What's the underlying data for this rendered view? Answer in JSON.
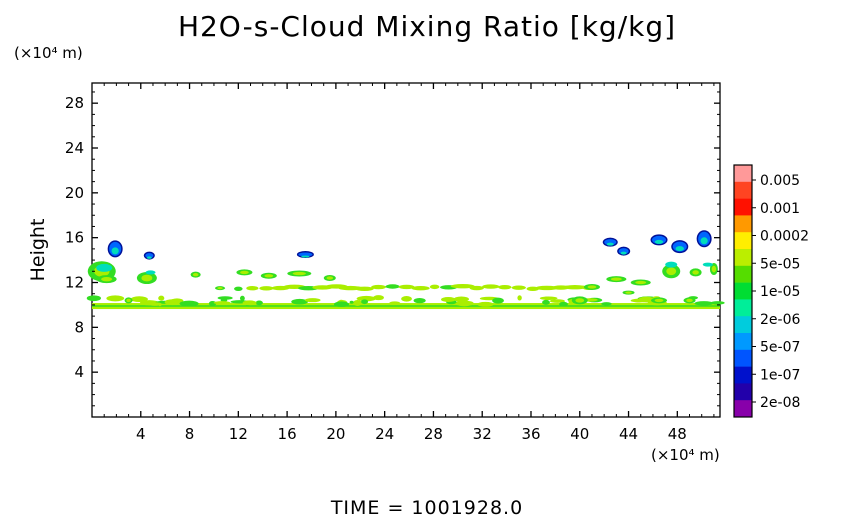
{
  "title": "H2O-s-Cloud Mixing Ratio [kg/kg]",
  "y_unit": "(×10⁴ m)",
  "x_unit": "(×10⁴ m)",
  "y_label": "Height",
  "time_label": "TIME = 1001928.0",
  "chart_data": {
    "type": "heatmap",
    "title": "H2O-s-Cloud Mixing Ratio [kg/kg]",
    "xlabel": "",
    "ylabel": "Height",
    "x_unit": "(×10⁴ m)",
    "y_unit": "(×10⁴ m)",
    "xlim": [
      0,
      51.5
    ],
    "ylim": [
      0,
      29.8
    ],
    "x_ticks": [
      "4",
      "8",
      "12",
      "16",
      "20",
      "24",
      "28",
      "32",
      "36",
      "40",
      "44",
      "48"
    ],
    "y_ticks": [
      "4",
      "8",
      "12",
      "16",
      "20",
      "24",
      "28"
    ],
    "colorbar": {
      "labels": [
        "0.005",
        "0.001",
        "0.0002",
        "5e-05",
        "1e-05",
        "2e-06",
        "5e-07",
        "1e-07",
        "2e-08"
      ],
      "colors": [
        "#ff9999",
        "#ff4422",
        "#ff1100",
        "#ff9900",
        "#ffee00",
        "#bbee00",
        "#55dd00",
        "#00dd33",
        "#00ee99",
        "#00ccdd",
        "#0099ff",
        "#0055ff",
        "#0011cc",
        "#2200aa",
        "#8800aa"
      ]
    },
    "features": [
      {
        "x": [
          0,
          51.5
        ],
        "y": 9.9,
        "value": "5e-05",
        "kind": "continuous layer"
      },
      {
        "x": [
          0,
          51.5
        ],
        "y": [
          10,
          13.5
        ],
        "value": "1e-05",
        "kind": "scattered patches"
      },
      {
        "x": [
          1.6,
          2.3
        ],
        "y": [
          14.2,
          15.6
        ],
        "value": "1e-07",
        "kind": "cloud top"
      },
      {
        "x": [
          16.8,
          18.2
        ],
        "y": 14.5,
        "value": "1e-07"
      },
      {
        "x": [
          42,
          44
        ],
        "y": [
          14,
          16.4
        ],
        "value": "1e-07"
      },
      {
        "x": [
          46,
          49
        ],
        "y": [
          13.8,
          16.8
        ],
        "value": "1e-07"
      },
      {
        "x": [
          49.5,
          50.5
        ],
        "y": [
          14,
          17
        ],
        "value": "2e-08"
      }
    ]
  }
}
